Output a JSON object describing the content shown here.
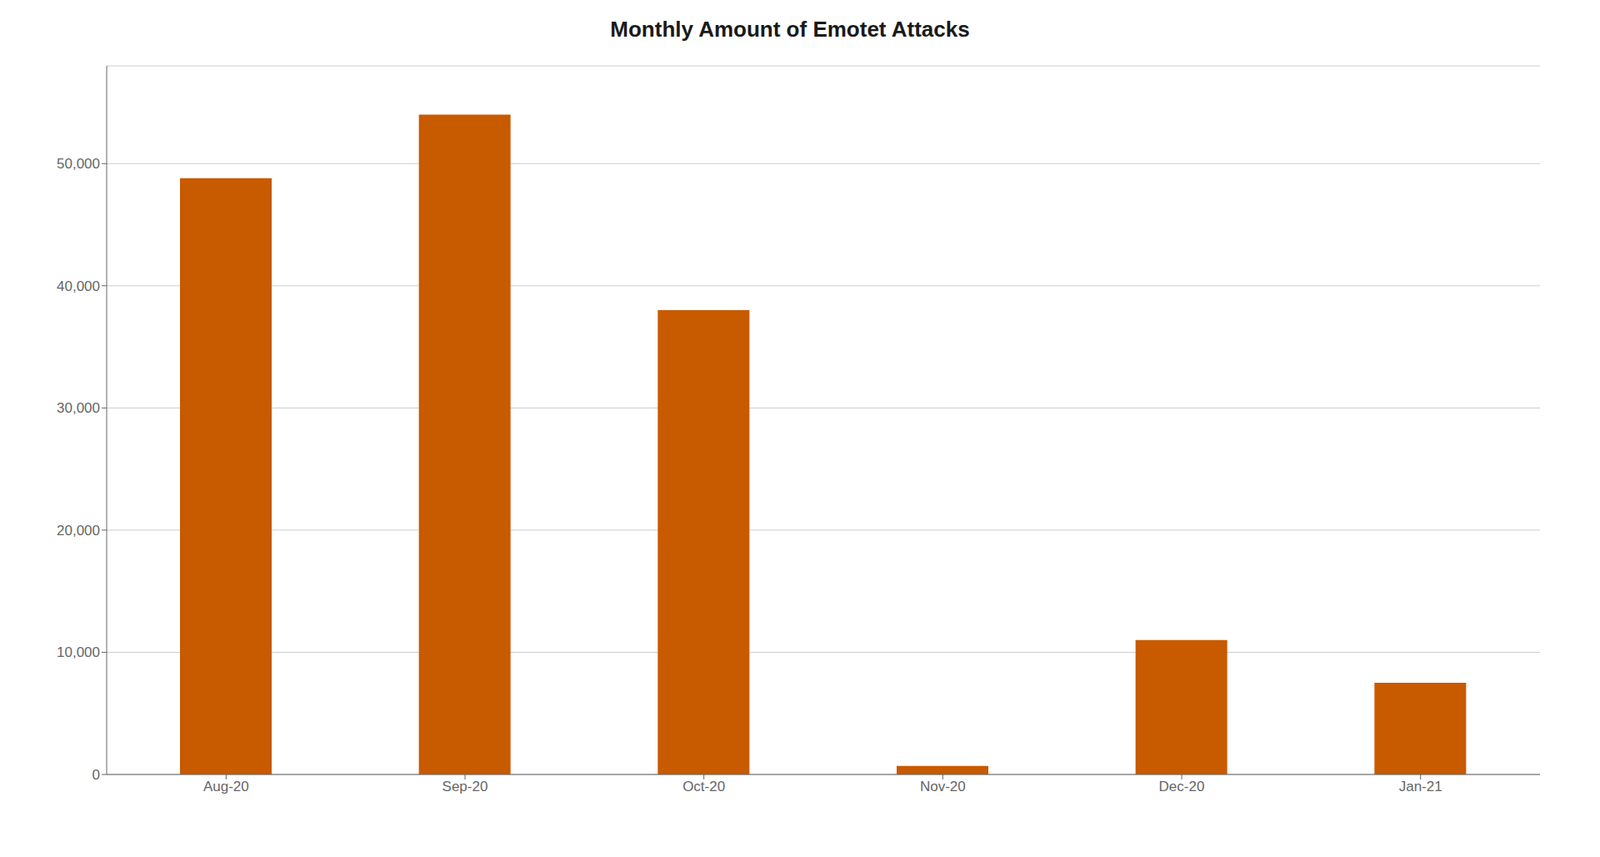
{
  "chart_data": {
    "type": "bar",
    "title": "Monthly Amount of Emotet Attacks",
    "categories": [
      "Aug-20",
      "Sep-20",
      "Oct-20",
      "Nov-20",
      "Dec-20",
      "Jan-21"
    ],
    "values": [
      48800,
      54000,
      38000,
      700,
      11000,
      7500
    ],
    "color": "#C85A00",
    "ylim": [
      0,
      58000
    ],
    "yticks": [
      0,
      {
        "value": 10000,
        "label": "10,000"
      },
      {
        "value": 20000,
        "label": "20,000"
      },
      {
        "value": 30000,
        "label": "30,000"
      },
      {
        "value": 40000,
        "label": "40,000"
      },
      {
        "value": 50000,
        "label": "50,000"
      }
    ],
    "grid": true
  }
}
